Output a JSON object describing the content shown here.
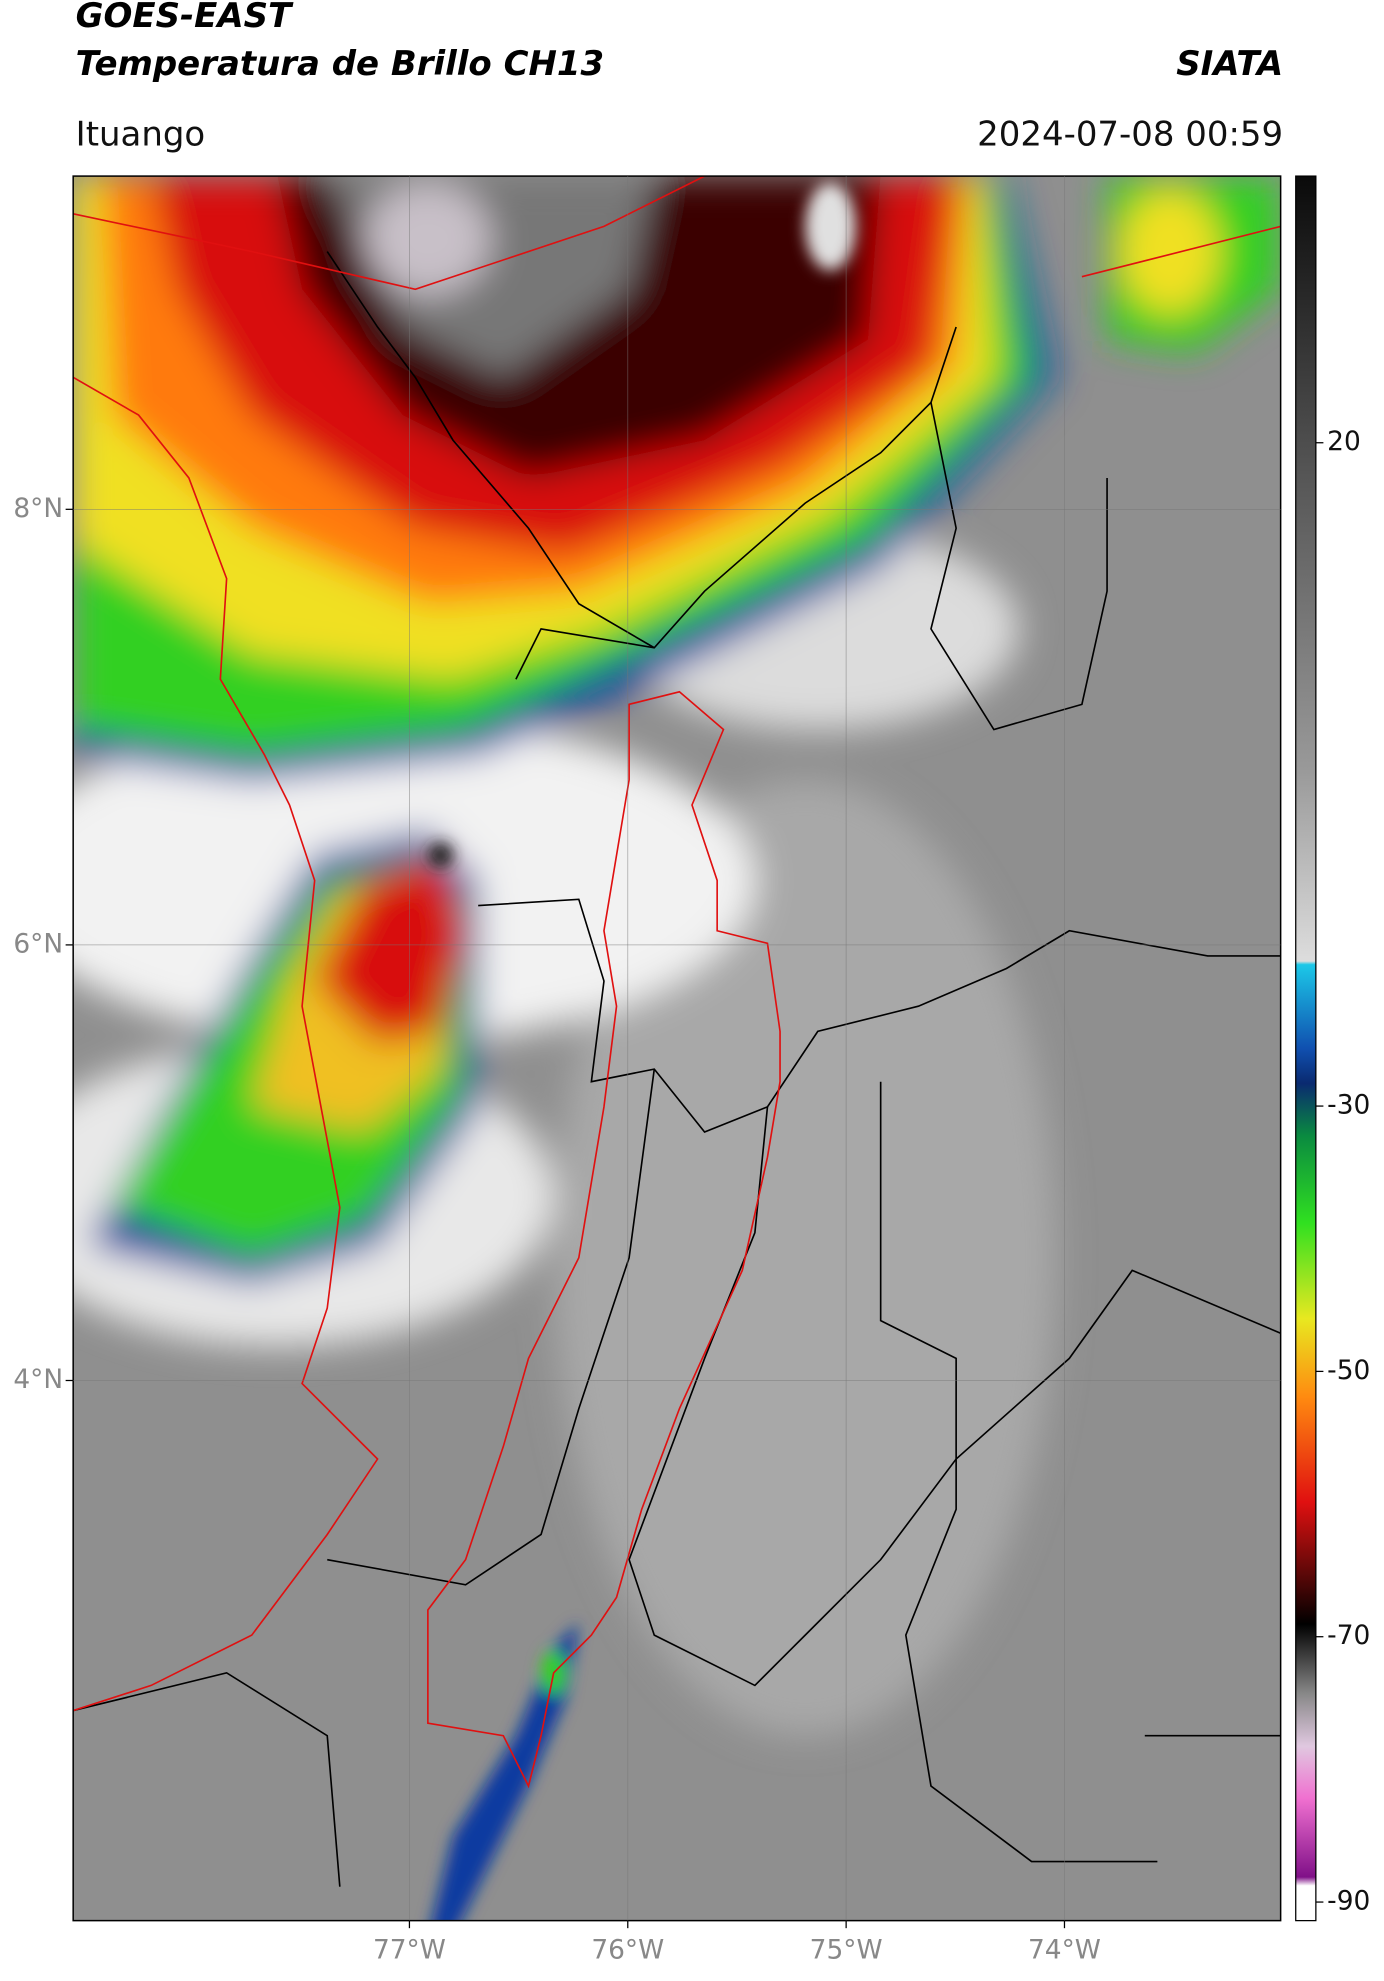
{
  "header": {
    "title": "GOES-EAST",
    "subtitle": "Temperatura de Brillo CH13",
    "source": "SIATA",
    "location": "Ituango",
    "datetime": "2024-07-08 00:59"
  },
  "map": {
    "xlim": [
      -78.54,
      -73.01
    ],
    "ylim": [
      1.52,
      9.53
    ],
    "xticks": [
      {
        "value": -77,
        "label": "77°W"
      },
      {
        "value": -76,
        "label": "76°W"
      },
      {
        "value": -75,
        "label": "75°W"
      },
      {
        "value": -74,
        "label": "74°W"
      }
    ],
    "yticks": [
      {
        "value": 8,
        "label": "8°N"
      },
      {
        "value": 6,
        "label": "6°N"
      },
      {
        "value": 4,
        "label": "4°N"
      }
    ],
    "grid": true
  },
  "colorbar": {
    "lim": [
      -91.4,
      40.1
    ],
    "ticks": [
      20,
      -30,
      -50,
      -70,
      -90
    ]
  }
}
